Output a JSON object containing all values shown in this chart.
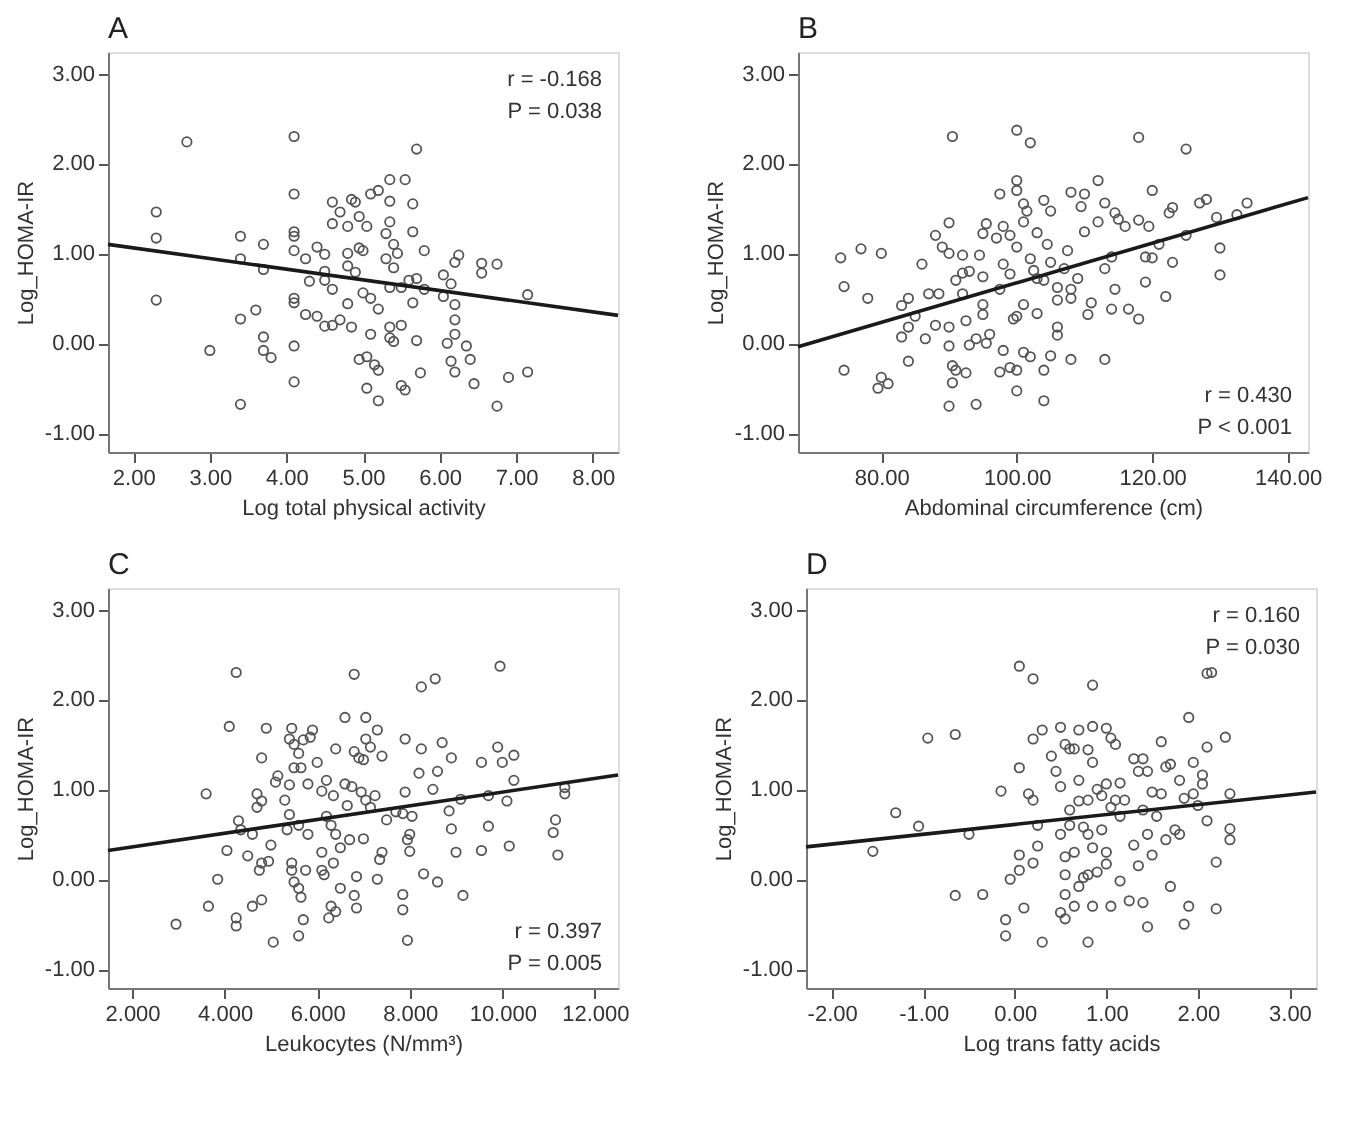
{
  "chart_data": [
    {
      "type": "scatter",
      "title": "A",
      "xlabel": "Log total physical activity",
      "ylabel": "Log_HOMA-IR",
      "xlim": [
        1.67,
        8.33
      ],
      "xticks": [
        {
          "value": 2,
          "label": "2.00"
        },
        {
          "value": 3,
          "label": "3.00"
        },
        {
          "value": 4,
          "label": "4.00"
        },
        {
          "value": 5,
          "label": "5.00"
        },
        {
          "value": 6,
          "label": "6.00"
        },
        {
          "value": 7,
          "label": "7.00"
        },
        {
          "value": 8,
          "label": "8.00"
        }
      ],
      "ylim": [
        -1.21,
        3.24
      ],
      "yticks": [
        {
          "value": -1,
          "label": "-1.00"
        },
        {
          "value": 0,
          "label": "0.00"
        },
        {
          "value": 1,
          "label": "1.00"
        },
        {
          "value": 2,
          "label": "2.00"
        },
        {
          "value": 3,
          "label": "3.00"
        }
      ],
      "annotations": [
        "r = -0.168",
        "P = 0.038"
      ],
      "series": [
        {
          "marker": "circle",
          "color": "#555555",
          "x": [
            2.3,
            2.3,
            2.3,
            2.7,
            3.0,
            3.4,
            3.4,
            3.4,
            3.4,
            3.6,
            3.7,
            3.7,
            3.7,
            3.7,
            3.8,
            4.1,
            4.1,
            4.1,
            4.1,
            4.1,
            4.1,
            4.1,
            4.1,
            4.1,
            4.25,
            4.25,
            4.3,
            4.4,
            4.4,
            4.5,
            4.5,
            4.5,
            4.5,
            4.6,
            4.6,
            4.6,
            4.6,
            4.7,
            4.7,
            4.8,
            4.8,
            4.8,
            4.8,
            4.85,
            4.85,
            4.9,
            4.9,
            4.95,
            4.95,
            5.0,
            5.0,
            4.95,
            5.05,
            5.1,
            5.1,
            5.05,
            5.05,
            5.1,
            5.2,
            5.2,
            5.15,
            5.2,
            5.2,
            5.3,
            5.3,
            5.35,
            5.35,
            5.35,
            5.35,
            5.35,
            5.35,
            5.4,
            5.4,
            5.4,
            5.45,
            5.5,
            5.5,
            5.5,
            5.55,
            5.55,
            5.6,
            5.65,
            5.65,
            5.65,
            5.7,
            5.7,
            5.7,
            5.75,
            5.8,
            5.8,
            6.05,
            6.05,
            6.1,
            6.15,
            6.15,
            6.2,
            6.2,
            6.2,
            6.2,
            6.2,
            6.25,
            6.35,
            6.4,
            6.45,
            6.55,
            6.55,
            6.75,
            6.75,
            6.9,
            7.15,
            7.15
          ],
          "values": [
            1.46,
            1.17,
            0.48,
            2.24,
            -0.08,
            1.19,
            0.94,
            0.27,
            -0.68,
            0.37,
            1.1,
            0.82,
            0.07,
            -0.08,
            -0.16,
            2.3,
            1.66,
            1.24,
            1.19,
            1.03,
            0.5,
            0.45,
            -0.03,
            -0.43,
            0.94,
            0.32,
            0.69,
            1.07,
            0.3,
            0.99,
            0.8,
            0.7,
            0.19,
            1.57,
            1.33,
            0.6,
            0.2,
            1.46,
            0.26,
            1.3,
            1.0,
            0.86,
            0.44,
            1.6,
            0.18,
            1.57,
            0.79,
            1.41,
            1.06,
            1.03,
            0.56,
            -0.18,
            1.3,
            1.66,
            0.1,
            -0.15,
            -0.5,
            0.5,
            1.7,
            0.38,
            -0.24,
            -0.3,
            -0.64,
            1.22,
            0.94,
            1.82,
            1.58,
            1.35,
            0.62,
            0.18,
            0.06,
            1.1,
            0.84,
            0.02,
            1.0,
            0.62,
            0.2,
            -0.47,
            -0.52,
            1.82,
            0.7,
            1.55,
            1.24,
            0.45,
            2.16,
            0.72,
            0.03,
            -0.33,
            1.03,
            0.6,
            0.76,
            0.52,
            0.0,
            0.66,
            -0.2,
            0.9,
            0.43,
            0.26,
            0.1,
            -0.32,
            0.98,
            -0.03,
            -0.18,
            -0.45,
            0.89,
            0.78,
            0.88,
            -0.7,
            -0.38,
            0.54,
            -0.32
          ]
        },
        {
          "type": "line",
          "color": "#1a1a1a",
          "x": [
            1.67,
            8.33
          ],
          "values": [
            1.1,
            0.31
          ]
        }
      ]
    },
    {
      "type": "scatter",
      "title": "B",
      "xlabel": "Abdominal circumference (cm)",
      "ylabel": "Log_HOMA-IR",
      "xlim": [
        67.7,
        143
      ],
      "xticks": [
        {
          "value": 80,
          "label": "80.00"
        },
        {
          "value": 100,
          "label": "100.00"
        },
        {
          "value": 120,
          "label": "120.00"
        },
        {
          "value": 140,
          "label": "140.00"
        }
      ],
      "ylim": [
        -1.21,
        3.24
      ],
      "yticks": [
        {
          "value": -1,
          "label": "-1.00"
        },
        {
          "value": 0,
          "label": "0.00"
        },
        {
          "value": 1,
          "label": "1.00"
        },
        {
          "value": 2,
          "label": "2.00"
        },
        {
          "value": 3,
          "label": "3.00"
        }
      ],
      "annotations": [
        "r = 0.430",
        "P < 0.001"
      ],
      "series": [
        {
          "marker": "circle",
          "color": "#555555",
          "x": [
            74,
            74.5,
            74.5,
            77,
            78,
            80,
            80,
            79.5,
            81,
            83,
            83,
            84,
            84,
            84,
            85,
            86,
            87,
            86.5,
            88,
            88,
            88.5,
            89,
            90,
            90,
            90,
            90,
            90.5,
            90.5,
            90.5,
            90,
            91,
            91,
            92,
            92,
            92,
            92.5,
            92.5,
            93,
            93,
            94,
            94,
            94.5,
            95,
            95,
            95,
            95,
            95.5,
            95.5,
            96,
            97,
            97.5,
            97.5,
            97.5,
            98,
            98,
            98,
            99,
            99,
            99,
            99.5,
            100,
            100,
            100,
            100,
            100,
            100,
            100,
            101,
            101,
            101,
            101,
            101.5,
            102,
            102,
            102,
            102.5,
            103,
            103,
            103,
            104,
            104,
            104,
            104,
            104.5,
            105,
            105,
            105,
            106,
            106,
            106,
            106,
            107,
            107.5,
            108,
            108,
            108,
            108,
            109,
            109.5,
            110,
            110,
            110.5,
            111,
            112,
            112,
            113,
            113,
            113,
            114,
            114,
            114.5,
            114.5,
            115,
            116,
            116.5,
            118,
            118,
            118,
            119,
            119,
            119.5,
            120,
            120,
            121,
            122,
            122.5,
            123,
            123,
            125,
            125,
            127,
            128,
            129.5,
            130,
            130,
            132.5,
            134
          ],
          "values": [
            0.95,
            0.63,
            -0.3,
            1.05,
            0.5,
            1.0,
            -0.38,
            -0.5,
            -0.45,
            0.42,
            0.07,
            0.5,
            0.18,
            -0.2,
            0.3,
            0.88,
            0.55,
            0.05,
            1.2,
            0.2,
            0.55,
            1.07,
            1.34,
            1.0,
            0.18,
            -0.03,
            2.3,
            -0.25,
            -0.44,
            -0.7,
            0.7,
            -0.3,
            0.98,
            0.78,
            0.55,
            0.25,
            -0.33,
            0.8,
            -0.02,
            0.05,
            -0.68,
            0.98,
            1.22,
            0.74,
            0.43,
            0.32,
            1.33,
            0.0,
            0.1,
            1.17,
            1.66,
            0.6,
            -0.32,
            1.3,
            0.88,
            -0.08,
            1.2,
            0.77,
            -0.27,
            0.27,
            2.37,
            1.81,
            1.7,
            1.07,
            0.3,
            -0.3,
            -0.53,
            1.55,
            1.35,
            0.43,
            -0.1,
            1.47,
            2.23,
            0.94,
            -0.15,
            0.81,
            1.23,
            0.72,
            0.33,
            1.59,
            0.7,
            -0.3,
            -0.64,
            1.1,
            1.47,
            0.9,
            -0.14,
            0.62,
            0.18,
            0.09,
            0.48,
            0.83,
            1.03,
            1.68,
            0.6,
            0.5,
            -0.18,
            0.72,
            1.52,
            1.66,
            1.24,
            0.32,
            0.45,
            1.81,
            1.35,
            1.56,
            0.83,
            -0.18,
            0.96,
            0.38,
            1.45,
            0.6,
            1.38,
            1.3,
            0.38,
            2.29,
            1.37,
            0.27,
            0.96,
            0.68,
            1.3,
            1.7,
            0.95,
            1.1,
            0.52,
            1.45,
            1.51,
            0.9,
            2.16,
            1.2,
            1.56,
            1.6,
            1.4,
            1.06,
            0.76,
            1.43,
            1.56
          ]
        },
        {
          "type": "line",
          "color": "#1a1a1a",
          "x": [
            67.7,
            143
          ],
          "values": [
            -0.04,
            1.62
          ]
        }
      ]
    },
    {
      "type": "scatter",
      "title": "C",
      "xlabel": "Leukocytes (N/mm³)",
      "ylabel": "Log_HOMA-IR",
      "xlim": [
        1.48,
        12.5
      ],
      "xticks": [
        {
          "value": 2,
          "label": "2.000"
        },
        {
          "value": 4,
          "label": "4.000"
        },
        {
          "value": 6,
          "label": "6.000"
        },
        {
          "value": 8,
          "label": "8.000"
        },
        {
          "value": 10,
          "label": "10.000"
        },
        {
          "value": 12,
          "label": "12.000"
        }
      ],
      "ylim": [
        -1.21,
        3.24
      ],
      "yticks": [
        {
          "value": -1,
          "label": "-1.00"
        },
        {
          "value": 0,
          "label": "0.00"
        },
        {
          "value": 1,
          "label": "1.00"
        },
        {
          "value": 2,
          "label": "2.00"
        },
        {
          "value": 3,
          "label": "3.00"
        }
      ],
      "annotations": [
        "r = 0.397",
        "P = 0.005"
      ],
      "series": [
        {
          "marker": "circle",
          "color": "#555555",
          "x": [
            2.95,
            3.6,
            3.65,
            3.85,
            4.05,
            4.1,
            4.25,
            4.25,
            4.25,
            4.3,
            4.35,
            4.5,
            4.6,
            4.6,
            4.7,
            4.7,
            4.75,
            4.8,
            4.8,
            4.8,
            4.8,
            4.9,
            4.95,
            5.0,
            5.05,
            5.1,
            5.15,
            5.3,
            5.35,
            5.4,
            5.4,
            5.4,
            5.45,
            5.45,
            5.45,
            5.5,
            5.5,
            5.5,
            5.6,
            5.6,
            5.6,
            5.6,
            5.65,
            5.65,
            5.7,
            5.7,
            5.75,
            5.8,
            5.8,
            5.85,
            5.9,
            6.0,
            6.1,
            6.1,
            6.1,
            6.15,
            6.2,
            6.2,
            6.25,
            6.3,
            6.3,
            6.35,
            6.35,
            6.4,
            6.4,
            6.4,
            6.5,
            6.5,
            6.6,
            6.6,
            6.65,
            6.7,
            6.75,
            6.8,
            6.8,
            6.8,
            6.85,
            6.85,
            6.9,
            6.95,
            7.0,
            7.0,
            7.05,
            7.05,
            7.05,
            7.15,
            7.15,
            7.25,
            7.3,
            7.3,
            7.35,
            7.4,
            7.4,
            7.5,
            7.7,
            7.85,
            7.85,
            7.85,
            7.9,
            7.9,
            7.95,
            7.95,
            8.0,
            8.0,
            8.05,
            8.2,
            8.25,
            8.25,
            8.3,
            8.5,
            8.55,
            8.6,
            8.6,
            8.7,
            8.85,
            8.9,
            8.9,
            9.0,
            9.1,
            9.15,
            9.55,
            9.55,
            9.7,
            9.7,
            9.9,
            9.95,
            10.0,
            10.1,
            10.15,
            10.25,
            10.25,
            11.1,
            11.15,
            11.2,
            11.35,
            11.35
          ],
          "values": [
            -0.5,
            0.95,
            -0.3,
            0.0,
            0.32,
            1.7,
            2.3,
            -0.43,
            -0.52,
            0.65,
            0.55,
            0.26,
            0.5,
            -0.3,
            0.95,
            0.8,
            0.1,
            1.35,
            0.87,
            0.18,
            -0.23,
            1.68,
            0.2,
            0.38,
            -0.7,
            1.08,
            1.15,
            0.88,
            0.55,
            1.56,
            1.05,
            0.72,
            1.68,
            0.18,
            0.1,
            1.5,
            1.24,
            -0.03,
            1.4,
            0.6,
            -0.1,
            -0.63,
            1.24,
            -0.2,
            1.55,
            -0.45,
            0.1,
            1.06,
            0.5,
            1.58,
            1.66,
            1.3,
            0.98,
            0.3,
            0.1,
            0.05,
            1.1,
            0.7,
            -0.43,
            0.6,
            -0.3,
            0.93,
            0.18,
            0.5,
            1.45,
            -0.36,
            -0.1,
            0.35,
            1.8,
            1.06,
            0.82,
            0.44,
            1.03,
            2.28,
            1.42,
            -0.18,
            -0.32,
            0.03,
            1.35,
            0.97,
            1.33,
            0.45,
            1.8,
            1.56,
            0.88,
            1.47,
            0.8,
            0.93,
            1.66,
            0.0,
            0.22,
            0.3,
            1.37,
            0.66,
            0.75,
            0.73,
            -0.17,
            -0.34,
            1.56,
            0.97,
            0.44,
            -0.68,
            0.31,
            0.5,
            0.7,
            1.18,
            1.45,
            2.14,
            0.06,
            1.0,
            2.23,
            1.2,
            -0.03,
            1.52,
            0.76,
            1.35,
            0.56,
            0.3,
            0.89,
            -0.18,
            1.3,
            0.32,
            0.93,
            0.59,
            1.47,
            2.37,
            1.3,
            0.87,
            0.37,
            1.38,
            1.1,
            0.52,
            0.66,
            0.27,
            1.02,
            0.95
          ]
        },
        {
          "type": "line",
          "color": "#1a1a1a",
          "x": [
            1.48,
            12.5
          ],
          "values": [
            0.32,
            1.16
          ]
        }
      ]
    },
    {
      "type": "scatter",
      "title": "D",
      "xlabel": "Log trans fatty acids",
      "ylabel": "Log_HOMA-IR",
      "xlim": [
        -2.28,
        3.29
      ],
      "xticks": [
        {
          "value": -2,
          "label": "-2.00"
        },
        {
          "value": -1,
          "label": "-1.00"
        },
        {
          "value": 0,
          "label": "0.00"
        },
        {
          "value": 1,
          "label": "1.00"
        },
        {
          "value": 2,
          "label": "2.00"
        },
        {
          "value": 3,
          "label": "3.00"
        }
      ],
      "ylim": [
        -1.21,
        3.24
      ],
      "yticks": [
        {
          "value": -1,
          "label": "-1.00"
        },
        {
          "value": 0,
          "label": "0.00"
        },
        {
          "value": 1,
          "label": "1.00"
        },
        {
          "value": 2,
          "label": "2.00"
        },
        {
          "value": 3,
          "label": "3.00"
        }
      ],
      "annotations": [
        "r = 0.160",
        "P = 0.030"
      ],
      "series": [
        {
          "marker": "circle",
          "color": "#555555",
          "x": [
            -1.55,
            -1.3,
            -1.05,
            -0.95,
            -0.65,
            -0.65,
            -0.5,
            -0.35,
            -0.15,
            -0.1,
            -0.1,
            -0.05,
            0.05,
            0.05,
            0.05,
            0.05,
            0.1,
            0.15,
            0.2,
            0.2,
            0.2,
            0.2,
            0.25,
            0.25,
            0.3,
            0.3,
            0.4,
            0.45,
            0.5,
            0.5,
            0.5,
            0.5,
            0.55,
            0.55,
            0.55,
            0.55,
            0.55,
            0.6,
            0.6,
            0.6,
            0.65,
            0.65,
            0.65,
            0.7,
            0.7,
            0.7,
            0.7,
            0.75,
            0.75,
            0.8,
            0.8,
            0.8,
            0.8,
            0.8,
            0.85,
            0.85,
            0.85,
            0.85,
            0.85,
            0.9,
            0.9,
            0.95,
            0.95,
            1.0,
            1.0,
            1.0,
            1.0,
            1.05,
            1.05,
            1.05,
            1.1,
            1.1,
            1.15,
            1.15,
            1.15,
            1.2,
            1.25,
            1.3,
            1.3,
            1.35,
            1.35,
            1.4,
            1.4,
            1.4,
            1.45,
            1.45,
            1.45,
            1.5,
            1.5,
            1.55,
            1.6,
            1.6,
            1.65,
            1.65,
            1.7,
            1.7,
            1.75,
            1.8,
            1.8,
            1.85,
            1.85,
            1.9,
            1.9,
            1.95,
            1.95,
            2.0,
            2.05,
            2.05,
            2.1,
            2.1,
            2.1,
            2.15,
            2.2,
            2.2,
            2.3,
            2.35,
            2.35,
            2.35
          ],
          "values": [
            0.31,
            0.74,
            0.59,
            1.57,
            1.61,
            -0.18,
            0.5,
            -0.17,
            0.98,
            -0.45,
            -0.63,
            0.0,
            2.37,
            1.24,
            0.1,
            0.27,
            -0.32,
            0.95,
            0.88,
            0.18,
            2.23,
            1.56,
            0.6,
            0.37,
            1.66,
            -0.7,
            1.37,
            1.2,
            1.69,
            1.03,
            0.5,
            -0.37,
            1.5,
            0.25,
            0.05,
            -0.17,
            -0.44,
            1.45,
            0.77,
            0.6,
            1.45,
            0.3,
            -0.3,
            1.66,
            1.1,
            0.87,
            -0.08,
            0.58,
            0.02,
            1.44,
            0.88,
            0.5,
            0.05,
            -0.7,
            1.7,
            1.3,
            0.35,
            -0.3,
            2.16,
            1.0,
            0.08,
            0.93,
            0.55,
            1.68,
            1.06,
            0.3,
            0.17,
            1.57,
            0.8,
            -0.3,
            1.5,
            0.88,
            1.07,
            0.7,
            -0.02,
            0.88,
            -0.24,
            1.34,
            0.38,
            1.2,
            0.15,
            1.34,
            0.77,
            -0.26,
            1.2,
            0.5,
            -0.53,
            0.97,
            0.27,
            0.7,
            1.53,
            0.95,
            1.25,
            0.44,
            1.28,
            -0.08,
            0.55,
            1.1,
            0.5,
            0.9,
            -0.5,
            1.8,
            -0.3,
            1.3,
            0.95,
            0.82,
            1.06,
            1.16,
            2.29,
            1.47,
            0.65,
            2.3,
            0.19,
            -0.33,
            1.58,
            0.95,
            0.44,
            0.56
          ]
        },
        {
          "type": "line",
          "color": "#1a1a1a",
          "x": [
            -2.28,
            3.29
          ],
          "values": [
            0.36,
            0.97
          ]
        }
      ]
    }
  ]
}
